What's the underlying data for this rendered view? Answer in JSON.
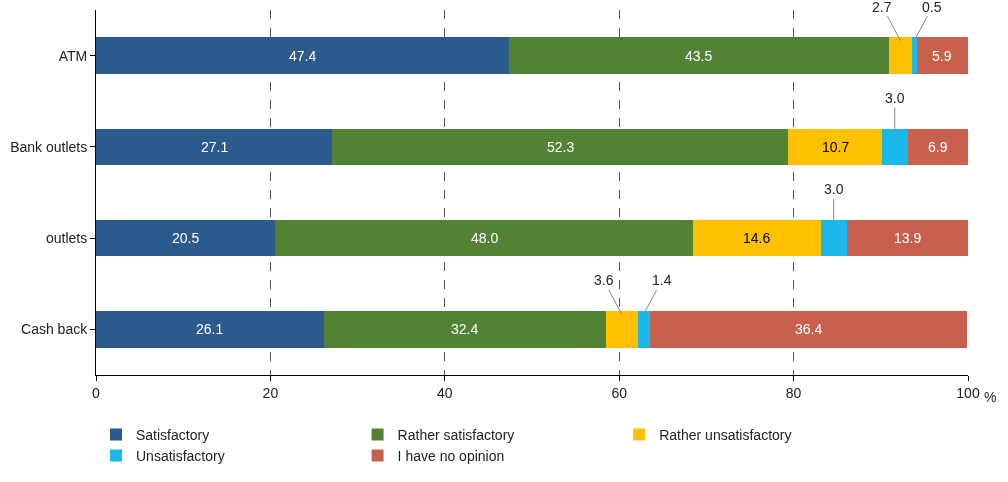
{
  "chart_data": {
    "type": "bar",
    "orientation": "horizontal",
    "stacked": true,
    "categories": [
      "ATM",
      "Bank outlets",
      "outlets",
      "Cash back"
    ],
    "xlim": [
      0,
      100
    ],
    "xticks": [
      0,
      20,
      40,
      60,
      80,
      100
    ],
    "xlabel": "%",
    "grid": "x",
    "legend": "bottom",
    "series": [
      {
        "name": "Satisfactory",
        "color": "#2b5a8c",
        "values": [
          47.4,
          27.1,
          20.5,
          26.1
        ],
        "value_labels": [
          "47.4",
          "27.1",
          "20.5",
          "26.1"
        ]
      },
      {
        "name": "Rather satisfactory",
        "color": "#548235",
        "values": [
          43.5,
          52.3,
          48.0,
          32.4
        ],
        "value_labels": [
          "43.5",
          "52.3",
          "48.0",
          "32.4"
        ]
      },
      {
        "name": "Rather unsatisfactory",
        "color": "#ffc000",
        "values": [
          2.7,
          10.7,
          14.6,
          3.6
        ],
        "value_labels": [
          "2.7",
          "10.7",
          "14.6",
          "3.6"
        ]
      },
      {
        "name": "Unsatisfactory",
        "color": "#1ab7ea",
        "values": [
          0.5,
          3.0,
          3.0,
          1.4
        ],
        "value_labels": [
          "0.5",
          "3.0",
          "3.0",
          "1.4"
        ]
      },
      {
        "name": "I have no opinion",
        "color": "#c9604d",
        "values": [
          5.9,
          6.9,
          13.9,
          36.4
        ],
        "value_labels": [
          "5.9",
          "6.9",
          "13.9",
          "36.4"
        ]
      }
    ]
  }
}
